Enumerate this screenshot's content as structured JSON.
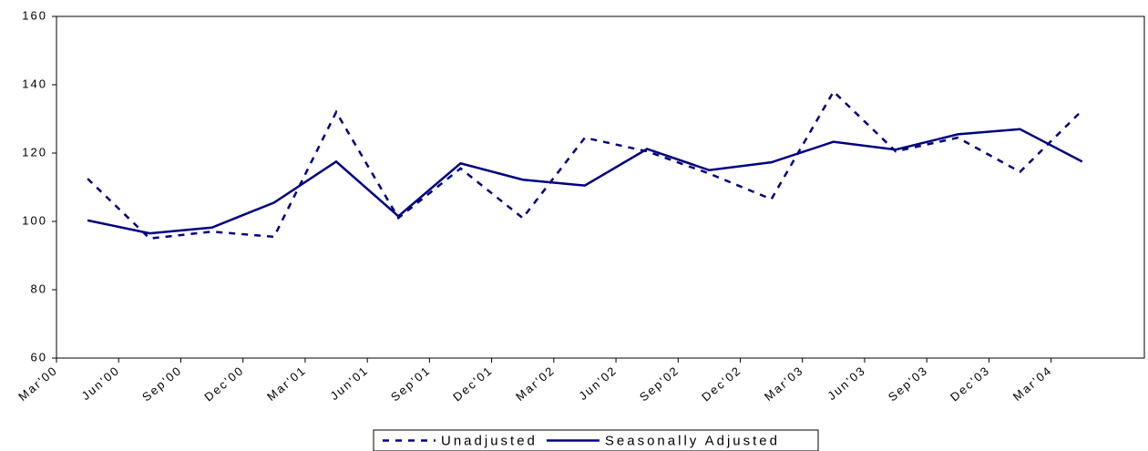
{
  "chart_data": {
    "type": "line",
    "categories": [
      "Mar'00",
      "Jun'00",
      "Sep'00",
      "Dec'00",
      "Mar'01",
      "Jun'01",
      "Sep'01",
      "Dec'01",
      "Mar'02",
      "Jun'02",
      "Sep'02",
      "Dec'02",
      "Mar'03",
      "Jun'03",
      "Sep'03",
      "Dec'03",
      "Mar'04"
    ],
    "series": [
      {
        "name": "Unadjusted",
        "color": "#000080",
        "dash": true,
        "values": [
          112.5,
          95,
          97,
          95.5,
          132,
          101,
          115.5,
          101,
          124.5,
          120.5,
          114,
          106.5,
          138,
          120.5,
          124.5,
          114.5,
          132.5
        ]
      },
      {
        "name": "Seasonally Adjusted",
        "color": "#000080",
        "dash": false,
        "values": [
          100.3,
          96.5,
          98.2,
          105.5,
          117.5,
          101.5,
          117,
          112.2,
          110.5,
          121.2,
          115,
          117.3,
          123.3,
          121,
          125.5,
          127,
          117.5
        ]
      }
    ],
    "ylim": [
      60,
      160
    ],
    "yticks": [
      60,
      80,
      100,
      120,
      140,
      160
    ],
    "legend": "bottom"
  }
}
